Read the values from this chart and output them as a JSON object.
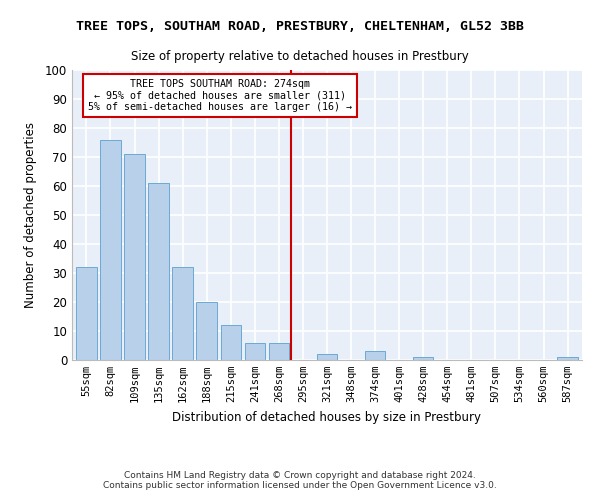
{
  "title": "TREE TOPS, SOUTHAM ROAD, PRESTBURY, CHELTENHAM, GL52 3BB",
  "subtitle": "Size of property relative to detached houses in Prestbury",
  "xlabel": "Distribution of detached houses by size in Prestbury",
  "ylabel": "Number of detached properties",
  "footer1": "Contains HM Land Registry data © Crown copyright and database right 2024.",
  "footer2": "Contains public sector information licensed under the Open Government Licence v3.0.",
  "bar_labels": [
    "55sqm",
    "82sqm",
    "109sqm",
    "135sqm",
    "162sqm",
    "188sqm",
    "215sqm",
    "241sqm",
    "268sqm",
    "295sqm",
    "321sqm",
    "348sqm",
    "374sqm",
    "401sqm",
    "428sqm",
    "454sqm",
    "481sqm",
    "507sqm",
    "534sqm",
    "560sqm",
    "587sqm"
  ],
  "bar_values": [
    32,
    76,
    71,
    61,
    32,
    20,
    12,
    6,
    6,
    0,
    2,
    0,
    3,
    0,
    1,
    0,
    0,
    0,
    0,
    0,
    1
  ],
  "bar_color": "#b8d0ea",
  "bar_edge_color": "#6aaad4",
  "bg_color": "#e8eff8",
  "grid_color": "#ffffff",
  "fig_color": "#ffffff",
  "vline_x": 8.5,
  "vline_color": "#cc0000",
  "annotation_text": "TREE TOPS SOUTHAM ROAD: 274sqm\n← 95% of detached houses are smaller (311)\n5% of semi-detached houses are larger (16) →",
  "annotation_box_color": "#ffffff",
  "annotation_box_edge_color": "#cc0000",
  "ylim": [
    0,
    100
  ],
  "yticks": [
    0,
    10,
    20,
    30,
    40,
    50,
    60,
    70,
    80,
    90,
    100
  ]
}
